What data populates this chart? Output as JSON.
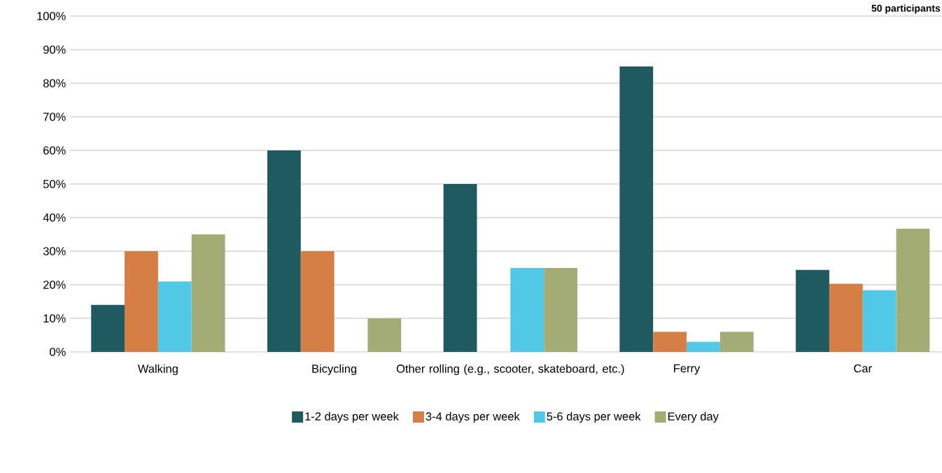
{
  "chart_data": {
    "type": "bar",
    "categories": [
      "Walking",
      "Bicycling",
      "Other rolling (e.g., scooter, skateboard, etc.)",
      "Ferry",
      "Car"
    ],
    "series": [
      {
        "name": "1-2 days per week",
        "color": "#1f5a61",
        "values": [
          14,
          60,
          50,
          85,
          24.4
        ]
      },
      {
        "name": "3-4 days per week",
        "color": "#d57f47",
        "values": [
          30,
          30,
          0,
          6,
          20.3
        ]
      },
      {
        "name": "5-6 days per week",
        "color": "#51c8e5",
        "values": [
          21,
          0,
          25,
          3,
          18.4
        ]
      },
      {
        "name": "Every day",
        "color": "#a3ac74",
        "values": [
          35,
          10,
          25,
          6,
          36.7
        ]
      }
    ],
    "ylim": [
      0,
      100
    ],
    "yticks": [
      {
        "value": 0,
        "label": "0%"
      },
      {
        "value": 10,
        "label": "10%"
      },
      {
        "value": 20,
        "label": "20%"
      },
      {
        "value": 30,
        "label": "30%"
      },
      {
        "value": 40,
        "label": "40%"
      },
      {
        "value": 50,
        "label": "50%"
      },
      {
        "value": 60,
        "label": "60%"
      },
      {
        "value": 70,
        "label": "70%"
      },
      {
        "value": 80,
        "label": "80%"
      },
      {
        "value": 90,
        "label": "90%"
      },
      {
        "value": 100,
        "label": "100%"
      }
    ],
    "grid": "y",
    "legend": "bottom",
    "annotations": [
      "50 participants"
    ]
  }
}
